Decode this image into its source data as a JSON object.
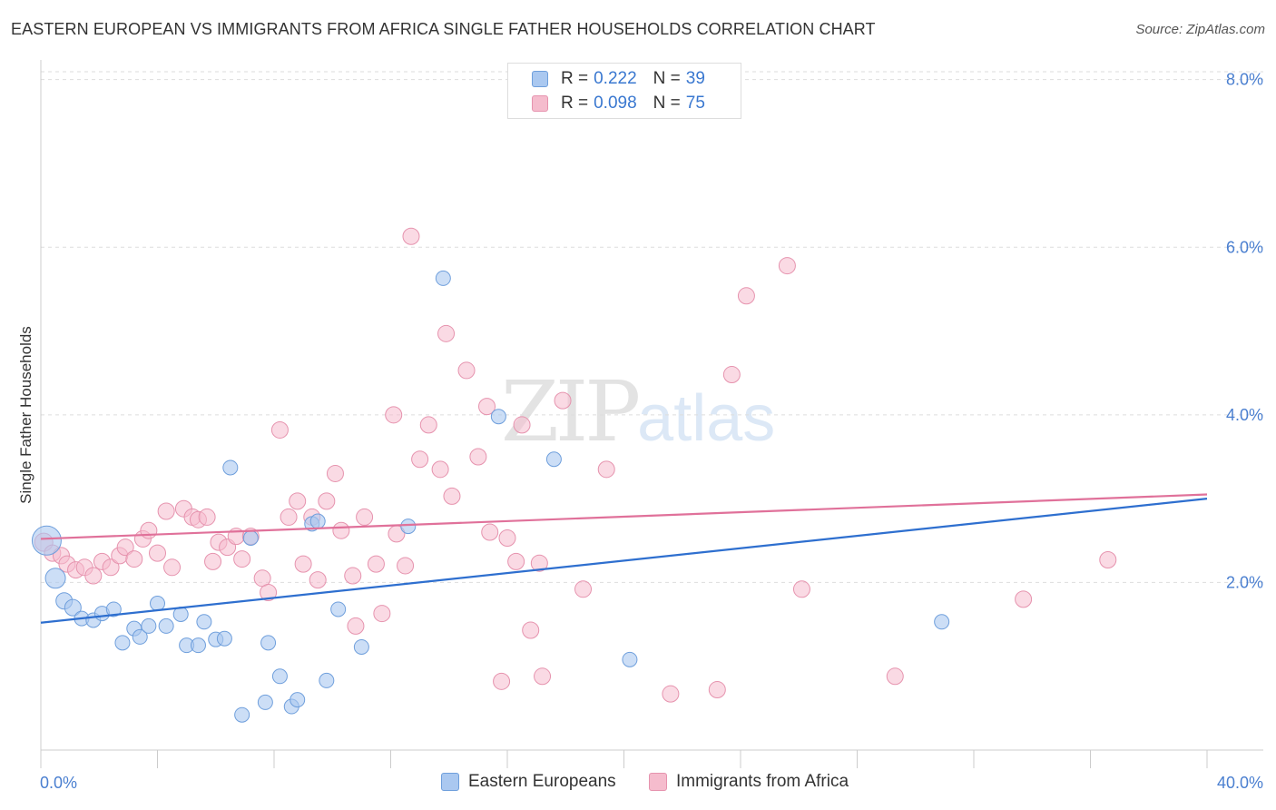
{
  "title": "EASTERN EUROPEAN VS IMMIGRANTS FROM AFRICA SINGLE FATHER HOUSEHOLDS CORRELATION CHART",
  "source": "Source: ZipAtlas.com",
  "watermark": {
    "zip": "ZIP",
    "atlas": "atlas"
  },
  "legend": {
    "rows": [
      {
        "r_label": "R =",
        "r_value": "0.222",
        "n_label": "N =",
        "n_value": "39"
      },
      {
        "r_label": "R =",
        "r_value": "0.098",
        "n_label": "N =",
        "n_value": "75"
      }
    ]
  },
  "bottom_legend": [
    "Eastern Europeans",
    "Immigrants from Africa"
  ],
  "chart_data": {
    "type": "scatter",
    "title": "EASTERN EUROPEAN VS IMMIGRANTS FROM AFRICA SINGLE FATHER HOUSEHOLDS CORRELATION CHART",
    "xlabel": "",
    "ylabel": "Single Father Households",
    "xlim": [
      0,
      40
    ],
    "ylim": [
      0,
      8.3
    ],
    "x_tick_labels": [
      "0.0%",
      "40.0%"
    ],
    "y_ticks": [
      2,
      4,
      6,
      8
    ],
    "y_tick_labels": [
      "2.0%",
      "4.0%",
      "6.0%",
      "8.0%"
    ],
    "grid": true,
    "legend_position": "top-center",
    "colors": {
      "blue_fill": "#aac8f0",
      "blue_stroke": "#6f9fdc",
      "blue_line": "#2e6fcf",
      "pink_fill": "#f5bccd",
      "pink_stroke": "#e693ae",
      "pink_line": "#e0719a"
    },
    "series": [
      {
        "name": "Eastern Europeans",
        "trend": [
          [
            0,
            1.52
          ],
          [
            40,
            3.0
          ]
        ],
        "points": [
          [
            0.2,
            2.5,
            16
          ],
          [
            0.5,
            2.05,
            11
          ],
          [
            0.8,
            1.78,
            9
          ],
          [
            1.1,
            1.7,
            9
          ],
          [
            1.4,
            1.57,
            8
          ],
          [
            1.8,
            1.55,
            8
          ],
          [
            2.1,
            1.63,
            8
          ],
          [
            2.5,
            1.68,
            8
          ],
          [
            2.8,
            1.28,
            8
          ],
          [
            3.2,
            1.45,
            8
          ],
          [
            3.4,
            1.35,
            8
          ],
          [
            3.7,
            1.48,
            8
          ],
          [
            4.0,
            1.75,
            8
          ],
          [
            4.3,
            1.48,
            8
          ],
          [
            4.8,
            1.62,
            8
          ],
          [
            5.0,
            1.25,
            8
          ],
          [
            5.4,
            1.25,
            8
          ],
          [
            5.6,
            1.53,
            8
          ],
          [
            6.0,
            1.32,
            8
          ],
          [
            6.3,
            1.33,
            8
          ],
          [
            6.5,
            3.37,
            8
          ],
          [
            7.2,
            2.53,
            8
          ],
          [
            7.7,
            0.57,
            8
          ],
          [
            7.8,
            1.28,
            8
          ],
          [
            8.2,
            0.88,
            8
          ],
          [
            8.6,
            0.52,
            8
          ],
          [
            8.8,
            0.6,
            8
          ],
          [
            9.3,
            2.7,
            8
          ],
          [
            9.5,
            2.73,
            8
          ],
          [
            9.8,
            0.83,
            8
          ],
          [
            10.2,
            1.68,
            8
          ],
          [
            11.0,
            1.23,
            8
          ],
          [
            12.6,
            2.67,
            8
          ],
          [
            13.8,
            5.63,
            8
          ],
          [
            15.7,
            3.98,
            8
          ],
          [
            17.6,
            3.47,
            8
          ],
          [
            20.2,
            1.08,
            8
          ],
          [
            6.9,
            0.42,
            8
          ],
          [
            30.9,
            1.53,
            8
          ]
        ]
      },
      {
        "name": "Immigrants from Africa",
        "trend": [
          [
            0,
            2.52
          ],
          [
            40,
            3.05
          ]
        ],
        "points": [
          [
            0.1,
            2.48,
            10
          ],
          [
            0.4,
            2.35,
            9
          ],
          [
            0.7,
            2.32,
            9
          ],
          [
            0.9,
            2.22,
            9
          ],
          [
            1.2,
            2.15,
            9
          ],
          [
            1.5,
            2.18,
            9
          ],
          [
            1.8,
            2.08,
            9
          ],
          [
            2.1,
            2.25,
            9
          ],
          [
            2.4,
            2.18,
            9
          ],
          [
            2.7,
            2.32,
            9
          ],
          [
            2.9,
            2.42,
            9
          ],
          [
            3.2,
            2.28,
            9
          ],
          [
            3.5,
            2.52,
            9
          ],
          [
            3.7,
            2.62,
            9
          ],
          [
            4.0,
            2.35,
            9
          ],
          [
            4.3,
            2.85,
            9
          ],
          [
            4.5,
            2.18,
            9
          ],
          [
            4.9,
            2.88,
            9
          ],
          [
            5.2,
            2.78,
            9
          ],
          [
            5.4,
            2.75,
            9
          ],
          [
            5.7,
            2.78,
            9
          ],
          [
            5.9,
            2.25,
            9
          ],
          [
            6.1,
            2.48,
            9
          ],
          [
            6.4,
            2.42,
            9
          ],
          [
            6.7,
            2.55,
            9
          ],
          [
            6.9,
            2.28,
            9
          ],
          [
            7.2,
            2.55,
            9
          ],
          [
            7.6,
            2.05,
            9
          ],
          [
            7.8,
            1.88,
            9
          ],
          [
            8.2,
            3.82,
            9
          ],
          [
            8.5,
            2.78,
            9
          ],
          [
            8.8,
            2.97,
            9
          ],
          [
            9.0,
            2.22,
            9
          ],
          [
            9.3,
            2.78,
            9
          ],
          [
            9.5,
            2.03,
            9
          ],
          [
            9.8,
            2.97,
            9
          ],
          [
            10.1,
            3.3,
            9
          ],
          [
            10.3,
            2.62,
            9
          ],
          [
            10.7,
            2.08,
            9
          ],
          [
            10.8,
            1.48,
            9
          ],
          [
            11.1,
            2.78,
            9
          ],
          [
            11.5,
            2.22,
            9
          ],
          [
            11.7,
            1.63,
            9
          ],
          [
            12.1,
            4.0,
            9
          ],
          [
            12.2,
            2.58,
            9
          ],
          [
            12.5,
            2.2,
            9
          ],
          [
            12.7,
            6.13,
            9
          ],
          [
            13.0,
            3.47,
            9
          ],
          [
            13.3,
            3.88,
            9
          ],
          [
            13.7,
            3.35,
            9
          ],
          [
            13.9,
            4.97,
            9
          ],
          [
            14.1,
            3.03,
            9
          ],
          [
            14.6,
            4.53,
            9
          ],
          [
            15.0,
            3.5,
            9
          ],
          [
            15.3,
            4.1,
            9
          ],
          [
            15.4,
            2.6,
            9
          ],
          [
            15.8,
            0.82,
            9
          ],
          [
            16.0,
            2.53,
            9
          ],
          [
            16.3,
            2.25,
            9
          ],
          [
            16.5,
            3.88,
            9
          ],
          [
            16.8,
            1.43,
            9
          ],
          [
            17.1,
            2.23,
            9
          ],
          [
            17.2,
            0.88,
            9
          ],
          [
            17.9,
            4.17,
            9
          ],
          [
            18.6,
            1.92,
            9
          ],
          [
            19.4,
            3.35,
            9
          ],
          [
            21.6,
            0.67,
            9
          ],
          [
            23.2,
            0.72,
            9
          ],
          [
            23.7,
            4.48,
            9
          ],
          [
            24.2,
            5.42,
            9
          ],
          [
            25.6,
            5.78,
            9
          ],
          [
            26.1,
            1.92,
            9
          ],
          [
            29.3,
            0.88,
            9
          ],
          [
            33.7,
            1.8,
            9
          ],
          [
            36.6,
            2.27,
            9
          ]
        ]
      }
    ]
  }
}
